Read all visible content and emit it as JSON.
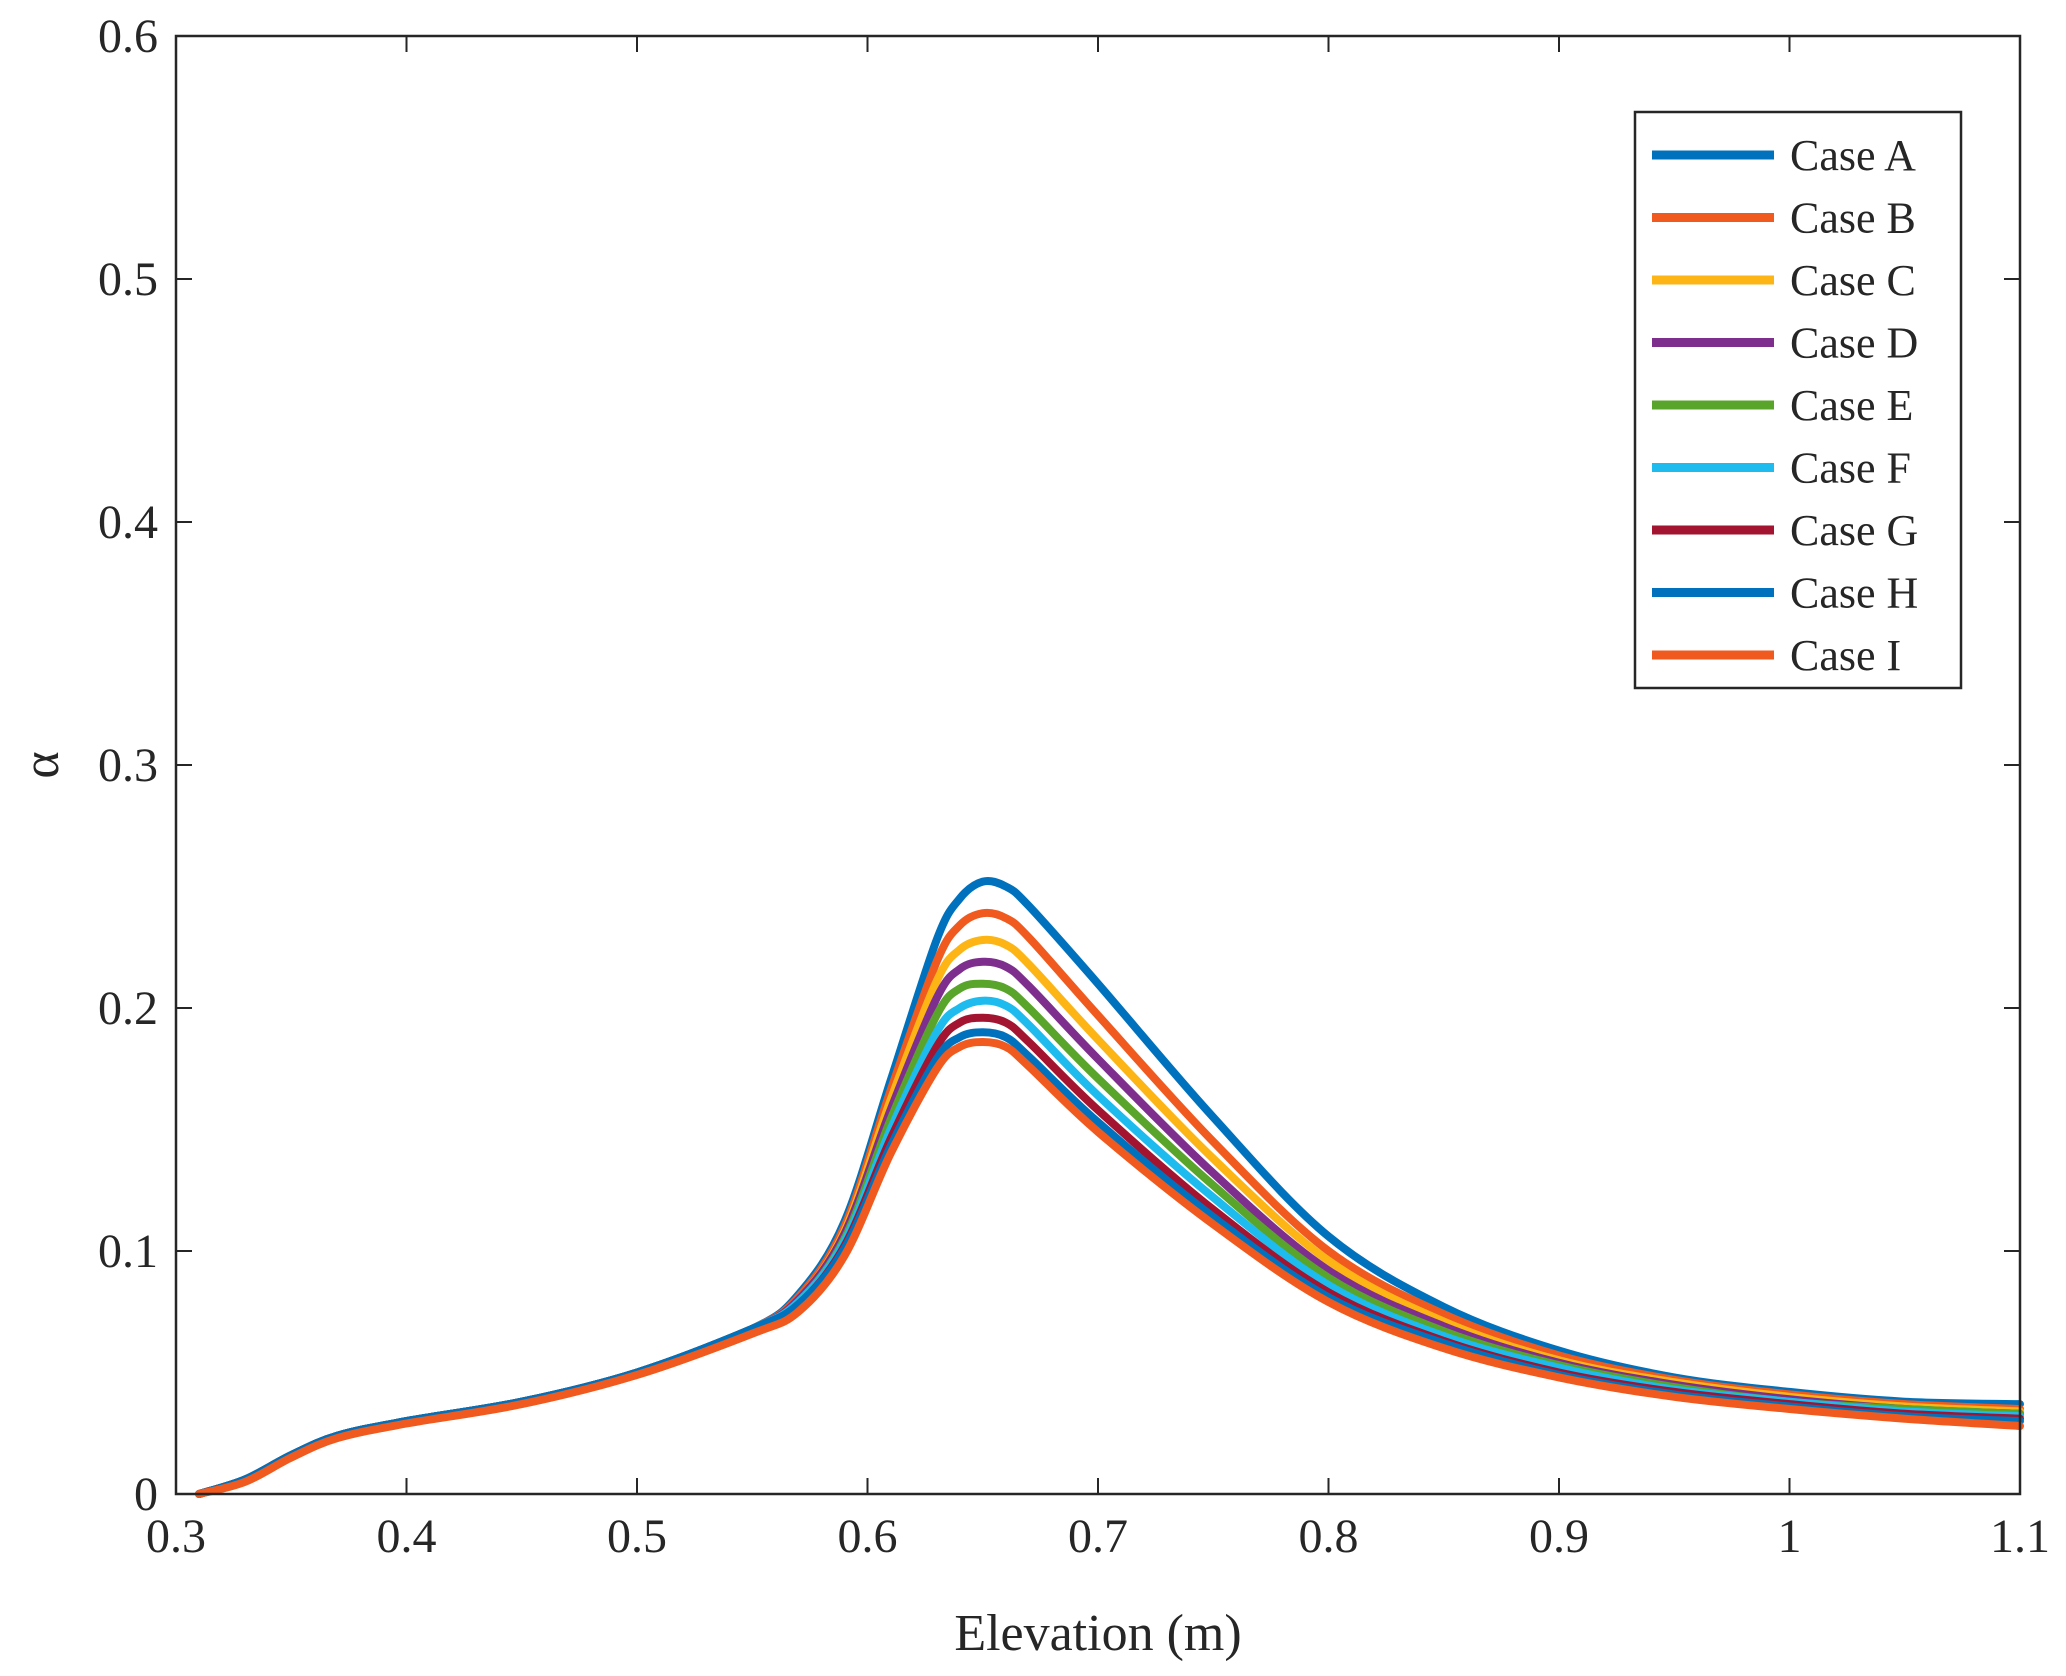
{
  "chart_data": {
    "type": "line",
    "title": "",
    "xlabel": "Elevation (m)",
    "ylabel": "α",
    "xlim": [
      0.3,
      1.1
    ],
    "ylim": [
      0,
      0.6
    ],
    "x_ticks": [
      0.3,
      0.4,
      0.5,
      0.6,
      0.7,
      0.8,
      0.9,
      1,
      1.1
    ],
    "x_tick_labels": [
      "0.3",
      "0.4",
      "0.5",
      "0.6",
      "0.7",
      "0.8",
      "0.9",
      "1",
      "1.1"
    ],
    "y_ticks": [
      0,
      0.1,
      0.2,
      0.3,
      0.4,
      0.5,
      0.6
    ],
    "y_tick_labels": [
      "0",
      "0.1",
      "0.2",
      "0.3",
      "0.4",
      "0.5",
      "0.6"
    ],
    "grid": false,
    "legend_position": "top-right",
    "x": [
      0.31,
      0.33,
      0.35,
      0.37,
      0.4,
      0.45,
      0.5,
      0.55,
      0.57,
      0.59,
      0.61,
      0.63,
      0.64,
      0.65,
      0.66,
      0.67,
      0.7,
      0.75,
      0.8,
      0.85,
      0.9,
      0.95,
      1.0,
      1.05,
      1.1
    ],
    "series": [
      {
        "name": "Case A",
        "color": "#0072BD",
        "values": [
          0,
          0.006,
          0.016,
          0.024,
          0.03,
          0.038,
          0.05,
          0.068,
          0.082,
          0.112,
          0.17,
          0.228,
          0.245,
          0.252,
          0.25,
          0.242,
          0.21,
          0.155,
          0.106,
          0.077,
          0.059,
          0.048,
          0.042,
          0.038,
          0.037
        ]
      },
      {
        "name": "Case B",
        "color": "#F05A1E",
        "values": [
          0,
          0.006,
          0.016,
          0.024,
          0.03,
          0.038,
          0.05,
          0.068,
          0.081,
          0.11,
          0.166,
          0.219,
          0.234,
          0.239,
          0.237,
          0.229,
          0.197,
          0.145,
          0.1,
          0.074,
          0.057,
          0.047,
          0.041,
          0.037,
          0.035
        ]
      },
      {
        "name": "Case C",
        "color": "#FDB515",
        "values": [
          0,
          0.006,
          0.016,
          0.024,
          0.03,
          0.038,
          0.05,
          0.068,
          0.08,
          0.108,
          0.162,
          0.211,
          0.224,
          0.228,
          0.226,
          0.218,
          0.187,
          0.138,
          0.096,
          0.071,
          0.055,
          0.046,
          0.04,
          0.036,
          0.034
        ]
      },
      {
        "name": "Case D",
        "color": "#7E2F8E",
        "values": [
          0,
          0.006,
          0.016,
          0.024,
          0.03,
          0.038,
          0.05,
          0.068,
          0.08,
          0.107,
          0.158,
          0.204,
          0.216,
          0.219,
          0.217,
          0.209,
          0.179,
          0.132,
          0.092,
          0.069,
          0.054,
          0.045,
          0.039,
          0.035,
          0.033
        ]
      },
      {
        "name": "Case E",
        "color": "#59A42A",
        "values": [
          0,
          0.006,
          0.016,
          0.024,
          0.03,
          0.038,
          0.05,
          0.068,
          0.079,
          0.105,
          0.154,
          0.197,
          0.208,
          0.21,
          0.208,
          0.2,
          0.171,
          0.127,
          0.089,
          0.067,
          0.053,
          0.044,
          0.038,
          0.035,
          0.033
        ]
      },
      {
        "name": "Case F",
        "color": "#1EBBEE",
        "values": [
          0,
          0.006,
          0.016,
          0.024,
          0.03,
          0.038,
          0.05,
          0.068,
          0.079,
          0.104,
          0.15,
          0.19,
          0.2,
          0.203,
          0.201,
          0.193,
          0.164,
          0.122,
          0.086,
          0.065,
          0.052,
          0.043,
          0.038,
          0.034,
          0.032
        ]
      },
      {
        "name": "Case G",
        "color": "#A2142F",
        "values": [
          0,
          0.006,
          0.016,
          0.024,
          0.03,
          0.038,
          0.05,
          0.068,
          0.078,
          0.102,
          0.146,
          0.184,
          0.194,
          0.196,
          0.194,
          0.186,
          0.158,
          0.117,
          0.083,
          0.063,
          0.05,
          0.042,
          0.037,
          0.033,
          0.031
        ]
      },
      {
        "name": "Case H",
        "color": "#0072BD",
        "values": [
          0,
          0.006,
          0.016,
          0.024,
          0.03,
          0.038,
          0.05,
          0.068,
          0.078,
          0.101,
          0.143,
          0.179,
          0.188,
          0.19,
          0.188,
          0.18,
          0.153,
          0.114,
          0.081,
          0.062,
          0.049,
          0.041,
          0.036,
          0.032,
          0.03
        ]
      },
      {
        "name": "Case I",
        "color": "#F05A1E",
        "values": [
          0,
          0.005,
          0.015,
          0.023,
          0.029,
          0.037,
          0.049,
          0.066,
          0.075,
          0.098,
          0.14,
          0.175,
          0.184,
          0.186,
          0.184,
          0.176,
          0.149,
          0.111,
          0.079,
          0.06,
          0.048,
          0.04,
          0.035,
          0.031,
          0.028
        ]
      }
    ]
  }
}
